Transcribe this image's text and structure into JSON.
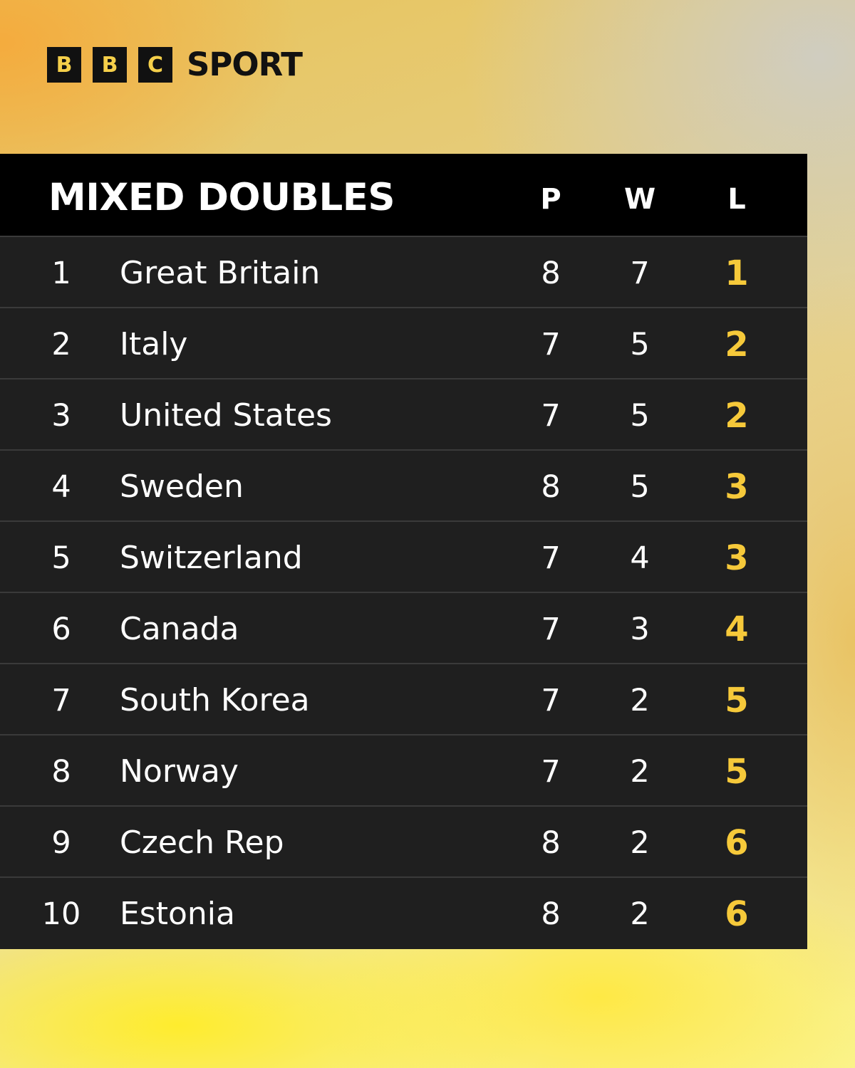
{
  "brand": {
    "boxes": [
      "B",
      "B",
      "C"
    ],
    "name": "SPORT",
    "box_color": "#111111",
    "box_text_color": "#f5cf4a"
  },
  "table": {
    "title": "MIXED DOUBLES",
    "columns": {
      "played": "P",
      "won": "W",
      "lost": "L"
    },
    "accent_color": "#f6c93a",
    "rows": [
      {
        "pos": "1",
        "team": "Great Britain",
        "p": "8",
        "w": "7",
        "l": "1"
      },
      {
        "pos": "2",
        "team": "Italy",
        "p": "7",
        "w": "5",
        "l": "2"
      },
      {
        "pos": "3",
        "team": "United States",
        "p": "7",
        "w": "5",
        "l": "2"
      },
      {
        "pos": "4",
        "team": "Sweden",
        "p": "8",
        "w": "5",
        "l": "3"
      },
      {
        "pos": "5",
        "team": "Switzerland",
        "p": "7",
        "w": "4",
        "l": "3"
      },
      {
        "pos": "6",
        "team": "Canada",
        "p": "7",
        "w": "3",
        "l": "4"
      },
      {
        "pos": "7",
        "team": "South Korea",
        "p": "7",
        "w": "2",
        "l": "5"
      },
      {
        "pos": "8",
        "team": "Norway",
        "p": "7",
        "w": "2",
        "l": "5"
      },
      {
        "pos": "9",
        "team": "Czech Rep",
        "p": "8",
        "w": "2",
        "l": "6"
      },
      {
        "pos": "10",
        "team": "Estonia",
        "p": "8",
        "w": "2",
        "l": "6"
      }
    ]
  }
}
